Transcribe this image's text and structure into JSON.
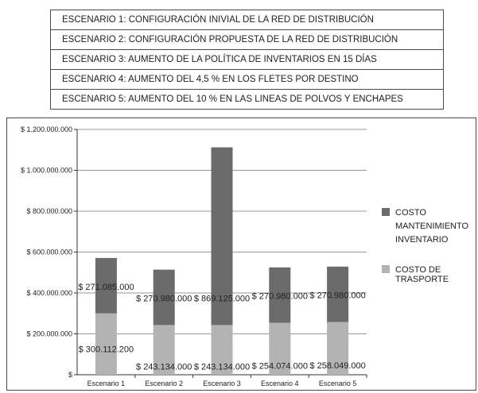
{
  "scenarios": [
    "ESCENARIO 1:  CONFIGURACIÓN INIVIAL DE LA RED DE DISTRIBUCIÓN",
    "ESCENARIO 2: CONFIGURACIÓN PROPUESTA DE LA RED DE DISTRIBUCIÓN",
    "ESCENARIO 3:  AUMENTO DE LA POLÍTICA DE INVENTARIOS EN 15 DÍAS",
    "ESCENARIO 4:  AUMENTO DEL 4,5 % EN LOS FLETES POR DESTINO",
    "ESCENARIO 5:  AUMENTO DEL 10 % EN LAS LINEAS DE POLVOS Y ENCHAPES"
  ],
  "chart_data": {
    "type": "bar",
    "stacked": true,
    "categories": [
      "Escenario 1",
      "Escenario 2",
      "Escenario 3",
      "Escenario 4",
      "Escenario 5"
    ],
    "ylim": [
      0,
      1200000000
    ],
    "yticks": [
      0,
      200000000,
      400000000,
      600000000,
      800000000,
      1000000000,
      1200000000
    ],
    "ytick_labels": [
      "$",
      "$ 200.000.000",
      "$ 400.000.000",
      "$ 600.000.000",
      "$ 800.000.000",
      "$ 1.000.000.000",
      "$ 1.200.000.000"
    ],
    "grid": true,
    "legend_position": "right",
    "series": [
      {
        "name": "COSTO DE TRASPORTE",
        "color": "#b3b3b3",
        "values": [
          300112200,
          243134000,
          243134000,
          254074000,
          258049000
        ],
        "labels": [
          "$ 300.112.200",
          "$ 243.134.000",
          "$ 243.134.000",
          "$ 254.074.000",
          "$ 258.049.000"
        ]
      },
      {
        "name": "COSTO MANTENIMIENTO INVENTARIO",
        "color": "#6b6b6b",
        "values": [
          271085000,
          270980000,
          869125000,
          270980000,
          270980000
        ],
        "labels": [
          "$ 271.085.000",
          "$ 270.980.000",
          "$ 869.125.000",
          "$ 270.980.000",
          "$ 270.980.000"
        ]
      }
    ],
    "legend_lines": [
      [
        "COSTO",
        "MANTENIMIENTO",
        "INVENTARIO"
      ],
      [
        "COSTO DE",
        "TRASPORTE"
      ]
    ]
  }
}
